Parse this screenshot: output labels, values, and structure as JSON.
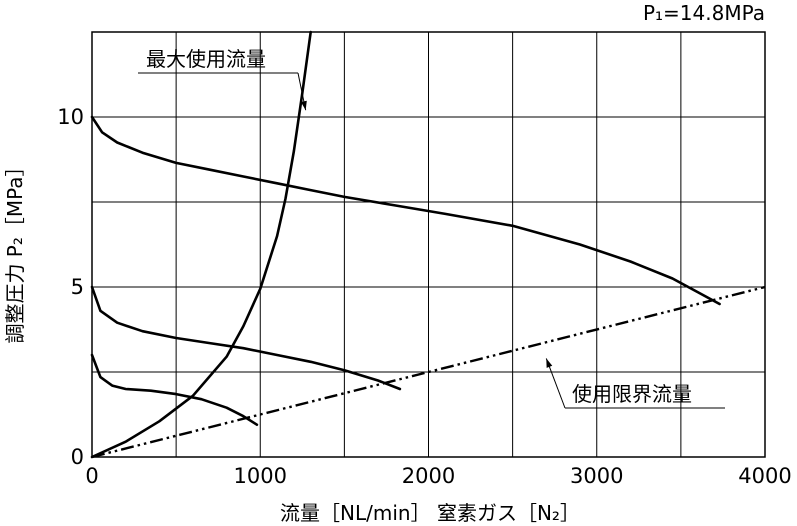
{
  "condition": "P₁=14.8MPa",
  "chart_data": {
    "type": "line",
    "xlabel": "流量［NL/min］ 窒素ガス［N₂］",
    "ylabel": "調整圧力 P₂［MPa］",
    "xlim": [
      0,
      4000
    ],
    "ylim": [
      0,
      12.5
    ],
    "xticks": [
      0,
      1000,
      2000,
      3000,
      4000
    ],
    "yticks": [
      0,
      5,
      10
    ],
    "grid": true,
    "series": [
      {
        "role": "regulation",
        "x": [
          0,
          60,
          150,
          300,
          500,
          700,
          900,
          1100,
          1300,
          1500,
          1800,
          2100,
          2500,
          2900,
          3200,
          3450,
          3600,
          3730
        ],
        "y": [
          10.0,
          9.55,
          9.25,
          8.95,
          8.65,
          8.45,
          8.25,
          8.05,
          7.85,
          7.65,
          7.4,
          7.15,
          6.8,
          6.25,
          5.75,
          5.25,
          4.85,
          4.5
        ]
      },
      {
        "role": "regulation",
        "x": [
          0,
          50,
          150,
          300,
          500,
          700,
          900,
          1100,
          1300,
          1500,
          1700,
          1830
        ],
        "y": [
          5.0,
          4.3,
          3.95,
          3.7,
          3.5,
          3.35,
          3.2,
          3.0,
          2.8,
          2.55,
          2.25,
          2.0
        ]
      },
      {
        "role": "regulation",
        "x": [
          0,
          50,
          120,
          200,
          350,
          500,
          650,
          800,
          900,
          980
        ],
        "y": [
          3.0,
          2.35,
          2.1,
          2.0,
          1.95,
          1.85,
          1.7,
          1.45,
          1.2,
          0.95
        ]
      },
      {
        "name": "最大使用流量",
        "role": "max-flow",
        "x": [
          0,
          200,
          400,
          600,
          800,
          900,
          1000,
          1100,
          1150,
          1200,
          1250,
          1300
        ],
        "y": [
          0,
          0.45,
          1.05,
          1.8,
          2.95,
          3.85,
          4.95,
          6.5,
          7.6,
          9.0,
          10.7,
          12.5
        ]
      },
      {
        "name": "使用限界流量",
        "role": "limit",
        "x": [
          0,
          4000
        ],
        "y": [
          0,
          5.0
        ]
      }
    ],
    "annotations": [
      {
        "text": "最大使用流量",
        "target": [
          1270,
          10.2
        ]
      },
      {
        "text": "使用限界流量",
        "target": [
          2700,
          2.9
        ]
      }
    ]
  }
}
